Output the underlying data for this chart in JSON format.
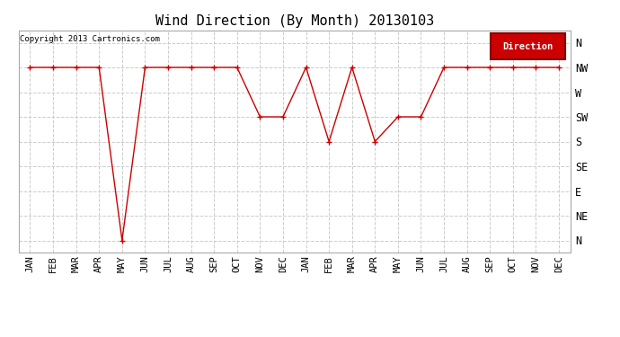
{
  "title": "Wind Direction (By Month) 20130103",
  "copyright_text": "Copyright 2013 Cartronics.com",
  "legend_label": "Direction",
  "legend_bg": "#cc0000",
  "legend_text_color": "#ffffff",
  "x_labels": [
    "JAN",
    "FEB",
    "MAR",
    "APR",
    "MAY",
    "JUN",
    "JUL",
    "AUG",
    "SEP",
    "OCT",
    "NOV",
    "DEC",
    "JAN",
    "FEB",
    "MAR",
    "APR",
    "MAY",
    "JUN",
    "JUL",
    "AUG",
    "SEP",
    "OCT",
    "NOV",
    "DEC"
  ],
  "y_labels": [
    "N",
    "NE",
    "E",
    "SE",
    "S",
    "SW",
    "W",
    "NW",
    "N"
  ],
  "y_values": [
    0,
    1,
    2,
    3,
    4,
    5,
    6,
    7,
    8
  ],
  "data_y": [
    7,
    7,
    7,
    7,
    0,
    7,
    7,
    7,
    7,
    7,
    5,
    5,
    7,
    4,
    7,
    4,
    5,
    5,
    7,
    7,
    7,
    7,
    7,
    7
  ],
  "line_color": "#cc0000",
  "marker": "+",
  "marker_size": 5,
  "bg_color": "#ffffff",
  "plot_bg_color": "#ffffff",
  "grid_color": "#cccccc",
  "title_fontsize": 11,
  "axis_label_fontsize": 7.5
}
